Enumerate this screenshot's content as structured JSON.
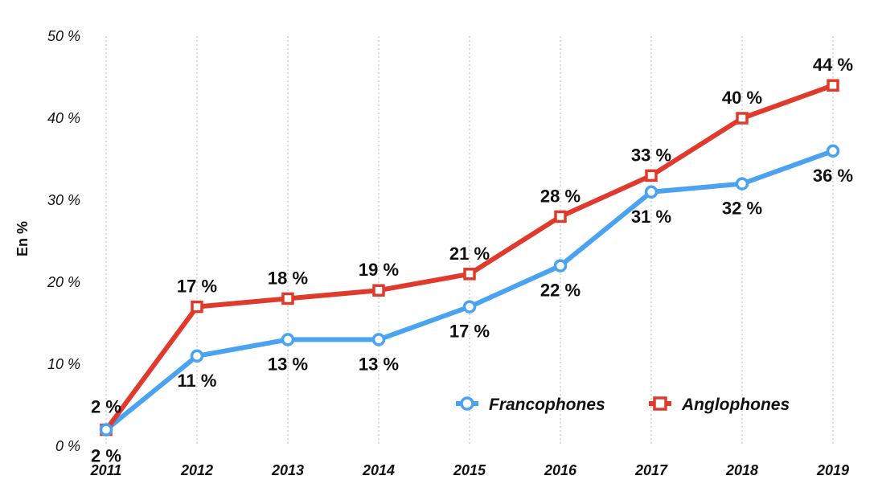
{
  "chart_data": {
    "type": "line",
    "title": "",
    "xlabel": "",
    "ylabel": "En %",
    "categories": [
      "2011",
      "2012",
      "2013",
      "2014",
      "2015",
      "2016",
      "2017",
      "2018",
      "2019"
    ],
    "y_ticks": [
      "0 %",
      "10 %",
      "20 %",
      "30 %",
      "40 %",
      "50 %"
    ],
    "ylim": [
      0,
      50
    ],
    "grid": "vertical-dotted",
    "legend_position": "bottom-right",
    "series": [
      {
        "name": "Francophones",
        "color": "#4aa3f0",
        "marker": "circle",
        "values": [
          2,
          11,
          13,
          13,
          17,
          22,
          31,
          32,
          36
        ],
        "labels": [
          "2 %",
          "11 %",
          "13 %",
          "13 %",
          "17 %",
          "22 %",
          "31 %",
          "32 %",
          "36 %"
        ]
      },
      {
        "name": "Anglophones",
        "color": "#e03a2c",
        "marker": "square",
        "values": [
          2,
          17,
          18,
          19,
          21,
          28,
          33,
          40,
          44
        ],
        "labels": [
          "2 %",
          "17 %",
          "18 %",
          "19 %",
          "21 %",
          "28 %",
          "33 %",
          "40 %",
          "44 %"
        ]
      }
    ]
  }
}
